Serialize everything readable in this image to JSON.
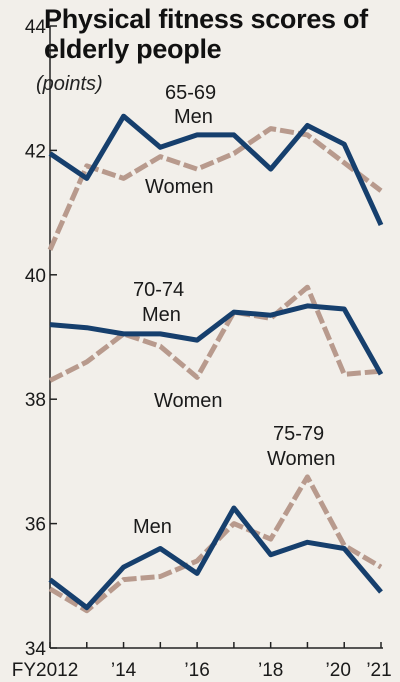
{
  "chart_data": {
    "type": "line",
    "title": "Physical fitness scores of elderly people",
    "ylabel": "(points)",
    "ylim": [
      34,
      44
    ],
    "yticks": [
      "34",
      "36",
      "38",
      "40",
      "42",
      "44"
    ],
    "x": [
      2012,
      2013,
      2014,
      2015,
      2016,
      2017,
      2018,
      2019,
      2020,
      2021
    ],
    "xtick_labels": [
      "FY2012",
      "’14",
      "’16",
      "’18",
      "’20",
      "’21"
    ],
    "series": [
      {
        "values": [
          41.95,
          41.55,
          42.55,
          42.05,
          42.25,
          42.25,
          41.7,
          42.4,
          42.1,
          40.8
        ]
      },
      {
        "values": [
          40.4,
          41.75,
          41.55,
          41.9,
          41.7,
          41.95,
          42.35,
          42.25,
          41.8,
          41.35
        ]
      },
      {
        "values": [
          39.2,
          39.15,
          39.05,
          39.05,
          38.95,
          39.4,
          39.35,
          39.5,
          39.45,
          38.4
        ]
      },
      {
        "values": [
          38.3,
          38.6,
          39.05,
          38.85,
          38.35,
          39.4,
          39.3,
          39.8,
          38.4,
          38.45
        ]
      },
      {
        "values": [
          35.1,
          34.65,
          35.3,
          35.6,
          35.2,
          36.25,
          35.5,
          35.7,
          35.6,
          34.9
        ]
      },
      {
        "values": [
          34.95,
          34.6,
          35.1,
          35.15,
          35.4,
          36.0,
          35.75,
          36.75,
          35.65,
          35.3
        ]
      }
    ],
    "annotations": [
      "65-69",
      "Men",
      "Women",
      "70-74",
      "Men",
      "Women",
      "75-79",
      "Women",
      "Men"
    ],
    "colors": {
      "men": "#163f6d",
      "women": "#b89a8d"
    }
  }
}
